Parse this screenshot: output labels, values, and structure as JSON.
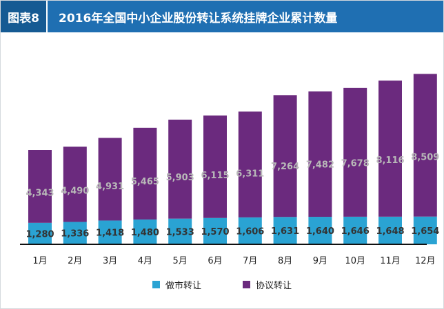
{
  "header": {
    "badge": "图表8",
    "title": "2016年全国中小企业股份转让系统挂牌企业累计数量"
  },
  "colors": {
    "header_bg": "#1f6fb2",
    "badge_bg": "#155a93",
    "market_making": "#2aa3d3",
    "agreement": "#6b2a7e"
  },
  "chart_data": {
    "type": "bar",
    "stacked": true,
    "categories": [
      "1月",
      "2月",
      "3月",
      "4月",
      "5月",
      "6月",
      "7月",
      "8月",
      "9月",
      "10月",
      "11月",
      "12月"
    ],
    "series": [
      {
        "name": "做市转让",
        "labels": [
          "1,280",
          "1,336",
          "1,418",
          "1,480",
          "1,533",
          "1,570",
          "1,606",
          "1,631",
          "1,640",
          "1,646",
          "1,648",
          "1,654"
        ],
        "values": [
          1280,
          1336,
          1418,
          1480,
          1533,
          1570,
          1606,
          1631,
          1640,
          1646,
          1648,
          1654
        ]
      },
      {
        "name": "协议转让",
        "labels": [
          "4,343",
          "4,490",
          "4,931",
          "5,465",
          "5,903",
          "6,115",
          "6,311",
          "7,264",
          "7,482",
          "7,678",
          "8,116",
          "8,509"
        ],
        "values": [
          4343,
          4490,
          4931,
          5465,
          5903,
          6115,
          6311,
          7264,
          7482,
          7678,
          8116,
          8509
        ]
      }
    ],
    "ylim": [
      0,
      11000
    ],
    "legend": "bottom"
  }
}
